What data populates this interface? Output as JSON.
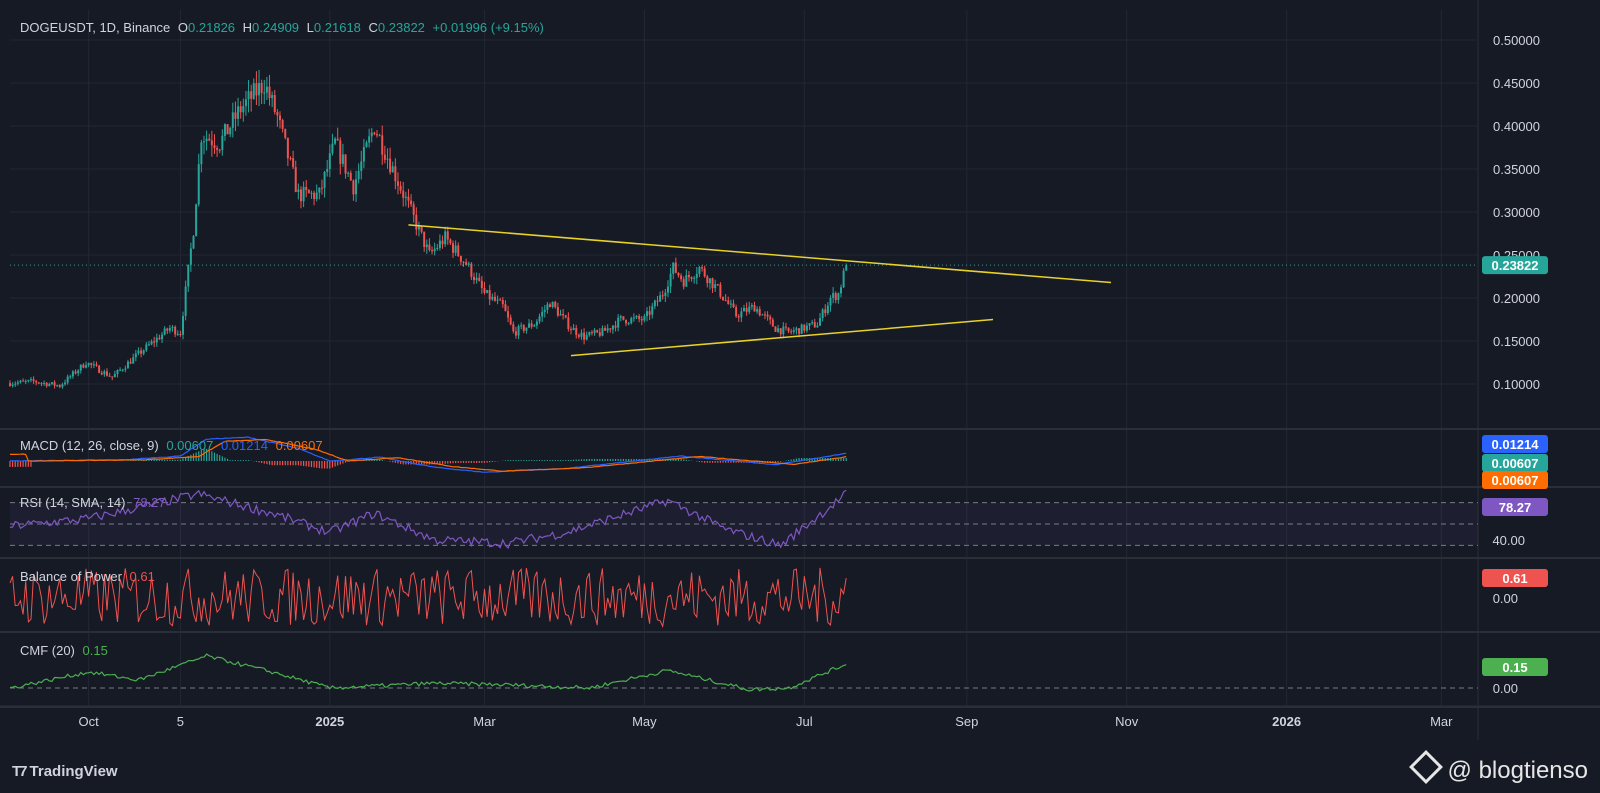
{
  "header": {
    "symbol": "DOGEUSDT, 1D, Binance",
    "open_label": "O",
    "open": "0.21826",
    "high_label": "H",
    "high": "0.24909",
    "low_label": "L",
    "low": "0.21618",
    "close_label": "C",
    "close": "0.23822",
    "change": "+0.01996 (+9.15%)"
  },
  "indicators": {
    "macd": {
      "title": "MACD (12, 26, close, 9)",
      "hist": "0.00607",
      "macd": "0.01214",
      "signal": "0.00607"
    },
    "rsi": {
      "title": "RSI (14, SMA, 14)",
      "value": "78.27",
      "level_label": "40.00"
    },
    "bop": {
      "title": "Balance of Power",
      "value": "0.61",
      "zero_label": "0.00"
    },
    "cmf": {
      "title": "CMF (20)",
      "value": "0.15",
      "zero_label": "0.00"
    }
  },
  "branding": {
    "tradingview": "TradingView",
    "watermark": "@ blogtienso"
  },
  "colors": {
    "background": "#161a25",
    "grid": "#232735",
    "up": "#26a69a",
    "down": "#ef5350",
    "trendline": "#e8d22a",
    "macd_line": "#2962ff",
    "signal_line": "#ff6d00",
    "rsi": "#7e57c2",
    "bop": "#ef5350",
    "cmf": "#4caf50"
  },
  "chart_data": {
    "type": "candlestick",
    "price_axis_ticks": [
      "0.10000",
      "0.15000",
      "0.20000",
      "0.25000",
      "0.30000",
      "0.35000",
      "0.40000",
      "0.45000",
      "0.50000"
    ],
    "time_axis_ticks": [
      "Oct",
      "5",
      "2025",
      "Mar",
      "May",
      "Jul",
      "Sep",
      "Nov",
      "2026",
      "Mar"
    ],
    "last_price": "0.23822",
    "price_keypoints": [
      [
        "2024-09-01",
        0.101
      ],
      [
        "2024-09-10",
        0.103
      ],
      [
        "2024-09-20",
        0.098
      ],
      [
        "2024-09-30",
        0.125
      ],
      [
        "2024-10-10",
        0.108
      ],
      [
        "2024-10-20",
        0.135
      ],
      [
        "2024-11-01",
        0.165
      ],
      [
        "2024-11-05",
        0.16
      ],
      [
        "2024-11-10",
        0.28
      ],
      [
        "2024-11-13",
        0.39
      ],
      [
        "2024-11-20",
        0.38
      ],
      [
        "2024-11-28",
        0.42
      ],
      [
        "2024-12-07",
        0.45
      ],
      [
        "2024-12-12",
        0.41
      ],
      [
        "2024-12-20",
        0.32
      ],
      [
        "2024-12-28",
        0.32
      ],
      [
        "2025-01-03",
        0.38
      ],
      [
        "2025-01-10",
        0.33
      ],
      [
        "2025-01-18",
        0.4
      ],
      [
        "2025-01-25",
        0.35
      ],
      [
        "2025-02-01",
        0.3
      ],
      [
        "2025-02-08",
        0.25
      ],
      [
        "2025-02-14",
        0.27
      ],
      [
        "2025-02-22",
        0.24
      ],
      [
        "2025-03-01",
        0.205
      ],
      [
        "2025-03-08",
        0.19
      ],
      [
        "2025-03-12",
        0.16
      ],
      [
        "2025-03-20",
        0.17
      ],
      [
        "2025-03-26",
        0.195
      ],
      [
        "2025-04-03",
        0.165
      ],
      [
        "2025-04-08",
        0.155
      ],
      [
        "2025-04-15",
        0.16
      ],
      [
        "2025-04-22",
        0.175
      ],
      [
        "2025-05-01",
        0.175
      ],
      [
        "2025-05-08",
        0.205
      ],
      [
        "2025-05-12",
        0.235
      ],
      [
        "2025-05-16",
        0.22
      ],
      [
        "2025-05-22",
        0.235
      ],
      [
        "2025-05-29",
        0.21
      ],
      [
        "2025-06-05",
        0.18
      ],
      [
        "2025-06-12",
        0.19
      ],
      [
        "2025-06-20",
        0.165
      ],
      [
        "2025-06-25",
        0.16
      ],
      [
        "2025-07-01",
        0.165
      ],
      [
        "2025-07-06",
        0.17
      ],
      [
        "2025-07-11",
        0.2
      ],
      [
        "2025-07-14",
        0.205
      ],
      [
        "2025-07-17",
        0.238
      ]
    ],
    "trendlines": [
      {
        "from": [
          "2025-01-31",
          0.285
        ],
        "to": [
          "2025-10-26",
          0.218
        ]
      },
      {
        "from": [
          "2025-04-03",
          0.133
        ],
        "to": [
          "2025-09-11",
          0.175
        ]
      }
    ],
    "macd_range": [
      -0.04,
      0.04
    ],
    "macd_keypoints": [
      [
        "2024-09-01",
        0.0
      ],
      [
        "2024-10-15",
        0.002
      ],
      [
        "2024-11-05",
        0.008
      ],
      [
        "2024-11-15",
        0.035
      ],
      [
        "2024-12-01",
        0.038
      ],
      [
        "2024-12-20",
        0.02
      ],
      [
        "2025-01-01",
        0.0
      ],
      [
        "2025-01-20",
        0.006
      ],
      [
        "2025-02-10",
        -0.01
      ],
      [
        "2025-03-01",
        -0.018
      ],
      [
        "2025-04-01",
        -0.012
      ],
      [
        "2025-05-15",
        0.008
      ],
      [
        "2025-06-20",
        -0.006
      ],
      [
        "2025-07-17",
        0.012
      ]
    ],
    "rsi_range": [
      20,
      80
    ],
    "rsi_keypoints": [
      [
        "2024-09-01",
        48
      ],
      [
        "2024-10-01",
        55
      ],
      [
        "2024-11-12",
        78
      ],
      [
        "2024-12-10",
        60
      ],
      [
        "2025-01-01",
        42
      ],
      [
        "2025-01-18",
        60
      ],
      [
        "2025-02-10",
        35
      ],
      [
        "2025-03-10",
        32
      ],
      [
        "2025-04-01",
        42
      ],
      [
        "2025-05-10",
        72
      ],
      [
        "2025-06-01",
        45
      ],
      [
        "2025-06-22",
        30
      ],
      [
        "2025-07-17",
        78
      ]
    ],
    "bop_range": [
      -1,
      1
    ],
    "cmf_range": [
      -0.1,
      0.3
    ],
    "cmf_keypoints": [
      [
        "2024-09-01",
        0.0
      ],
      [
        "2024-10-01",
        0.1
      ],
      [
        "2024-10-20",
        0.05
      ],
      [
        "2024-11-15",
        0.2
      ],
      [
        "2024-12-10",
        0.1
      ],
      [
        "2025-01-01",
        0.0
      ],
      [
        "2025-02-10",
        0.03
      ],
      [
        "2025-03-10",
        0.02
      ],
      [
        "2025-04-10",
        0.0
      ],
      [
        "2025-05-10",
        0.11
      ],
      [
        "2025-06-10",
        -0.01
      ],
      [
        "2025-06-25",
        0.0
      ],
      [
        "2025-07-17",
        0.15
      ]
    ]
  }
}
